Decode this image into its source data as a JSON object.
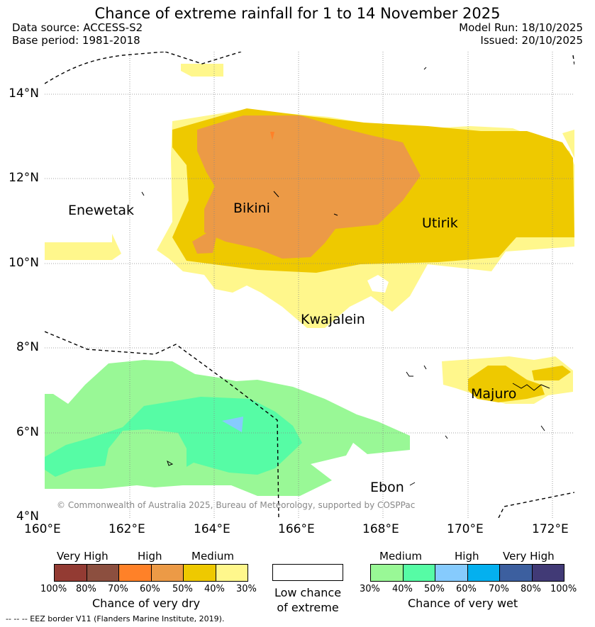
{
  "title": "Chance of extreme rainfall for 1 to 14 November 2025",
  "data_source": "Data source: ACCESS-S2",
  "base_period": "Base period: 1981-2018",
  "model_run": "Model Run: 18/10/2025",
  "issued": "Issued: 20/10/2025",
  "lat_labels": [
    "14°N",
    "12°N",
    "10°N",
    "8°N",
    "6°N",
    "4°N"
  ],
  "lon_labels": [
    "160°E",
    "162°E",
    "164°E",
    "166°E",
    "168°E",
    "170°E",
    "172°E"
  ],
  "places": {
    "enewetak": "Enewetak",
    "bikini": "Bikini",
    "utirik": "Utirik",
    "kwajalein": "Kwajalein",
    "majuro": "Majuro",
    "ebon": "Ebon"
  },
  "copyright": "© Commonwealth of Australia 2025, Bureau of Meteorology, supported by COSPPac",
  "dry_legend": {
    "heads": [
      "Very High",
      "High",
      "Medium"
    ],
    "pcts": [
      "100%",
      "80%",
      "70%",
      "60%",
      "50%",
      "40%",
      "30%"
    ],
    "colors": [
      "#933b33",
      "#8c4f3f",
      "#ff8128",
      "#ec9a46",
      "#eec900",
      "#fff78c"
    ],
    "title": "Chance of very dry"
  },
  "low_chance": {
    "line1": "Low chance",
    "line2": "of extreme"
  },
  "wet_legend": {
    "heads": [
      "Medium",
      "High",
      "Very High"
    ],
    "pcts": [
      "30%",
      "40%",
      "50%",
      "60%",
      "70%",
      "80%",
      "100%"
    ],
    "colors": [
      "#99f896",
      "#56fca5",
      "#86cbfd",
      "#04b0ef",
      "#3c5f9f",
      "#413a76"
    ],
    "title": "Chance of very wet"
  },
  "eez_note": "-- -- -- EEZ border V11 (Flanders Marine Institute, 2019)."
}
